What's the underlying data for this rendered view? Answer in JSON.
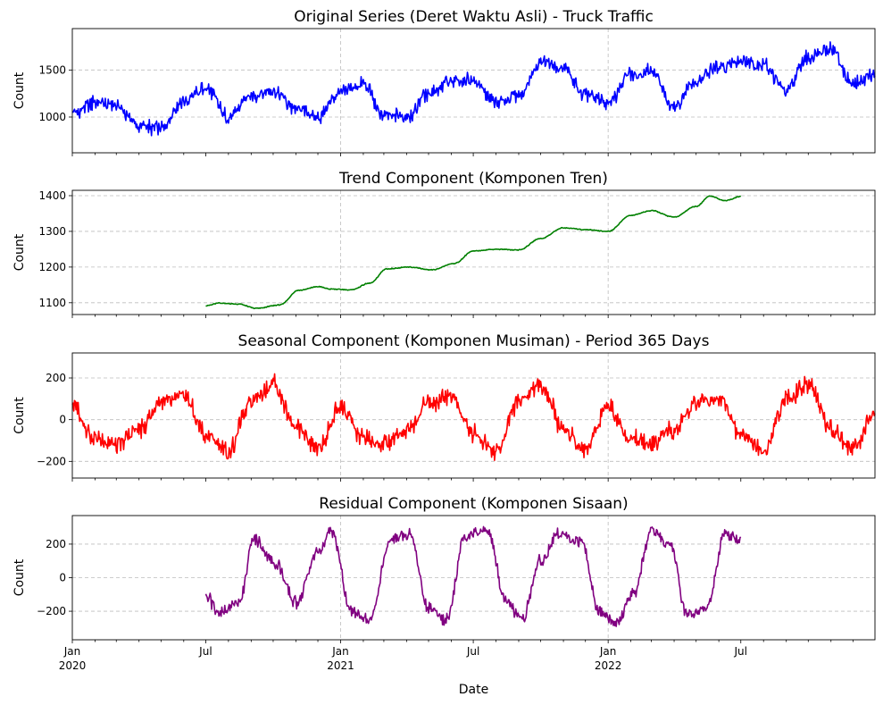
{
  "chart_data": [
    {
      "type": "line",
      "title": "Original Series (Deret Waktu Asli) - Truck Traffic",
      "ylabel": "Count",
      "xlabel": "",
      "color": "#0000ff",
      "ylim": [
        620,
        1940
      ],
      "yticks": [
        1000,
        1500
      ],
      "grid": true,
      "x_range": [
        "2020-01-01",
        "2022-12-31"
      ],
      "series": [
        {
          "x": [
            "2020-01-01",
            "2020-02-01",
            "2020-03-01",
            "2020-04-01",
            "2020-05-01",
            "2020-06-01",
            "2020-07-01",
            "2020-08-01",
            "2020-09-01",
            "2020-10-01",
            "2020-11-01",
            "2020-12-01",
            "2021-01-01",
            "2021-02-01",
            "2021-03-01",
            "2021-04-01",
            "2021-05-01",
            "2021-06-01",
            "2021-07-01",
            "2021-08-01",
            "2021-09-01",
            "2021-10-01",
            "2021-11-01",
            "2021-12-01",
            "2022-01-01",
            "2022-02-01",
            "2022-03-01",
            "2022-04-01",
            "2022-05-01",
            "2022-06-01",
            "2022-07-01",
            "2022-08-01",
            "2022-09-01",
            "2022-10-01",
            "2022-11-01",
            "2022-12-01",
            "2022-12-31"
          ],
          "values": [
            1050,
            1150,
            1120,
            900,
            880,
            1180,
            1300,
            1000,
            1230,
            1280,
            1080,
            1000,
            1260,
            1350,
            1020,
            1000,
            1250,
            1380,
            1400,
            1150,
            1230,
            1580,
            1520,
            1220,
            1160,
            1450,
            1500,
            1100,
            1380,
            1530,
            1600,
            1550,
            1280,
            1640,
            1720,
            1350,
            1470
          ]
        }
      ]
    },
    {
      "type": "line",
      "title": "Trend Component (Komponen Tren)",
      "ylabel": "Count",
      "xlabel": "",
      "color": "#008000",
      "ylim": [
        1067,
        1415
      ],
      "yticks": [
        1100,
        1200,
        1300,
        1400
      ],
      "grid": true,
      "x_range": [
        "2020-01-01",
        "2022-12-31"
      ],
      "series": [
        {
          "x": [
            "2020-07-01",
            "2020-07-20",
            "2020-08-15",
            "2020-09-08",
            "2020-10-10",
            "2020-11-05",
            "2020-12-01",
            "2020-12-20",
            "2021-01-15",
            "2021-02-10",
            "2021-03-05",
            "2021-04-05",
            "2021-05-05",
            "2021-06-05",
            "2021-07-01",
            "2021-08-01",
            "2021-09-01",
            "2021-10-01",
            "2021-11-01",
            "2021-12-01",
            "2022-01-01",
            "2022-02-01",
            "2022-03-01",
            "2022-04-01",
            "2022-05-01",
            "2022-05-20",
            "2022-06-10",
            "2022-07-01"
          ],
          "values": [
            1092,
            1099,
            1096,
            1084,
            1094,
            1135,
            1145,
            1138,
            1136,
            1155,
            1195,
            1200,
            1192,
            1210,
            1245,
            1250,
            1248,
            1280,
            1310,
            1305,
            1300,
            1345,
            1358,
            1340,
            1370,
            1399,
            1386,
            1398
          ]
        }
      ]
    },
    {
      "type": "line",
      "title": "Seasonal Component (Komponen Musiman) - Period 365 Days",
      "ylabel": "Count",
      "xlabel": "",
      "color": "#ff0000",
      "ylim": [
        -280,
        320
      ],
      "yticks": [
        -200,
        0,
        200
      ],
      "grid": true,
      "x_range": [
        "2020-01-01",
        "2022-12-31"
      ],
      "series": [
        {
          "x": [
            "2020-01-01",
            "2020-02-01",
            "2020-03-01",
            "2020-04-01",
            "2020-05-01",
            "2020-06-01",
            "2020-07-01",
            "2020-08-01",
            "2020-09-01",
            "2020-10-01",
            "2020-11-01",
            "2020-12-01",
            "2021-01-01",
            "2021-02-01",
            "2021-03-01",
            "2021-04-01",
            "2021-05-01",
            "2021-06-01",
            "2021-07-01",
            "2021-08-01",
            "2021-09-01",
            "2021-10-01",
            "2021-11-01",
            "2021-12-01",
            "2022-01-01",
            "2022-02-01",
            "2022-03-01",
            "2022-04-01",
            "2022-05-01",
            "2022-06-01",
            "2022-07-01",
            "2022-08-01",
            "2022-09-01",
            "2022-10-01",
            "2022-11-01",
            "2022-12-01",
            "2022-12-31"
          ],
          "values": [
            60,
            -90,
            -120,
            -50,
            80,
            110,
            -70,
            -150,
            90,
            170,
            -40,
            -140,
            60,
            -90,
            -120,
            -50,
            80,
            110,
            -70,
            -150,
            90,
            170,
            -40,
            -140,
            60,
            -90,
            -120,
            -50,
            80,
            110,
            -70,
            -150,
            90,
            170,
            -40,
            -140,
            30
          ]
        }
      ]
    },
    {
      "type": "line",
      "title": "Residual Component (Komponen Sisaan)",
      "ylabel": "Count",
      "xlabel": "Date",
      "color": "#800080",
      "ylim": [
        -370,
        370
      ],
      "yticks": [
        -200,
        0,
        200
      ],
      "grid": true,
      "x_range": [
        "2020-01-01",
        "2022-12-31"
      ],
      "xticks": [
        {
          "date": "2020-01-01",
          "label": "Jan",
          "year": "2020"
        },
        {
          "date": "2020-07-01",
          "label": "Jul",
          "year": ""
        },
        {
          "date": "2021-01-01",
          "label": "Jan",
          "year": "2021"
        },
        {
          "date": "2021-07-01",
          "label": "Jul",
          "year": ""
        },
        {
          "date": "2022-01-01",
          "label": "Jan",
          "year": "2022"
        },
        {
          "date": "2022-07-01",
          "label": "Jul",
          "year": ""
        }
      ],
      "series": [
        {
          "x": [
            "2020-07-01",
            "2020-07-20",
            "2020-08-15",
            "2020-09-05",
            "2020-10-05",
            "2020-11-01",
            "2020-12-01",
            "2020-12-20",
            "2021-01-15",
            "2021-02-10",
            "2021-03-10",
            "2021-04-05",
            "2021-05-01",
            "2021-05-25",
            "2021-06-20",
            "2021-07-20",
            "2021-08-15",
            "2021-09-05",
            "2021-10-01",
            "2021-10-25",
            "2021-11-25",
            "2021-12-20",
            "2022-01-10",
            "2022-02-05",
            "2022-03-01",
            "2022-03-25",
            "2022-04-20",
            "2022-05-15",
            "2022-06-10",
            "2022-07-01"
          ],
          "values": [
            -100,
            -220,
            -150,
            230,
            80,
            -150,
            150,
            280,
            -200,
            -250,
            220,
            260,
            -180,
            -250,
            250,
            280,
            -150,
            -250,
            100,
            260,
            220,
            -200,
            -280,
            -100,
            280,
            200,
            -220,
            -180,
            260,
            230
          ]
        }
      ]
    }
  ]
}
